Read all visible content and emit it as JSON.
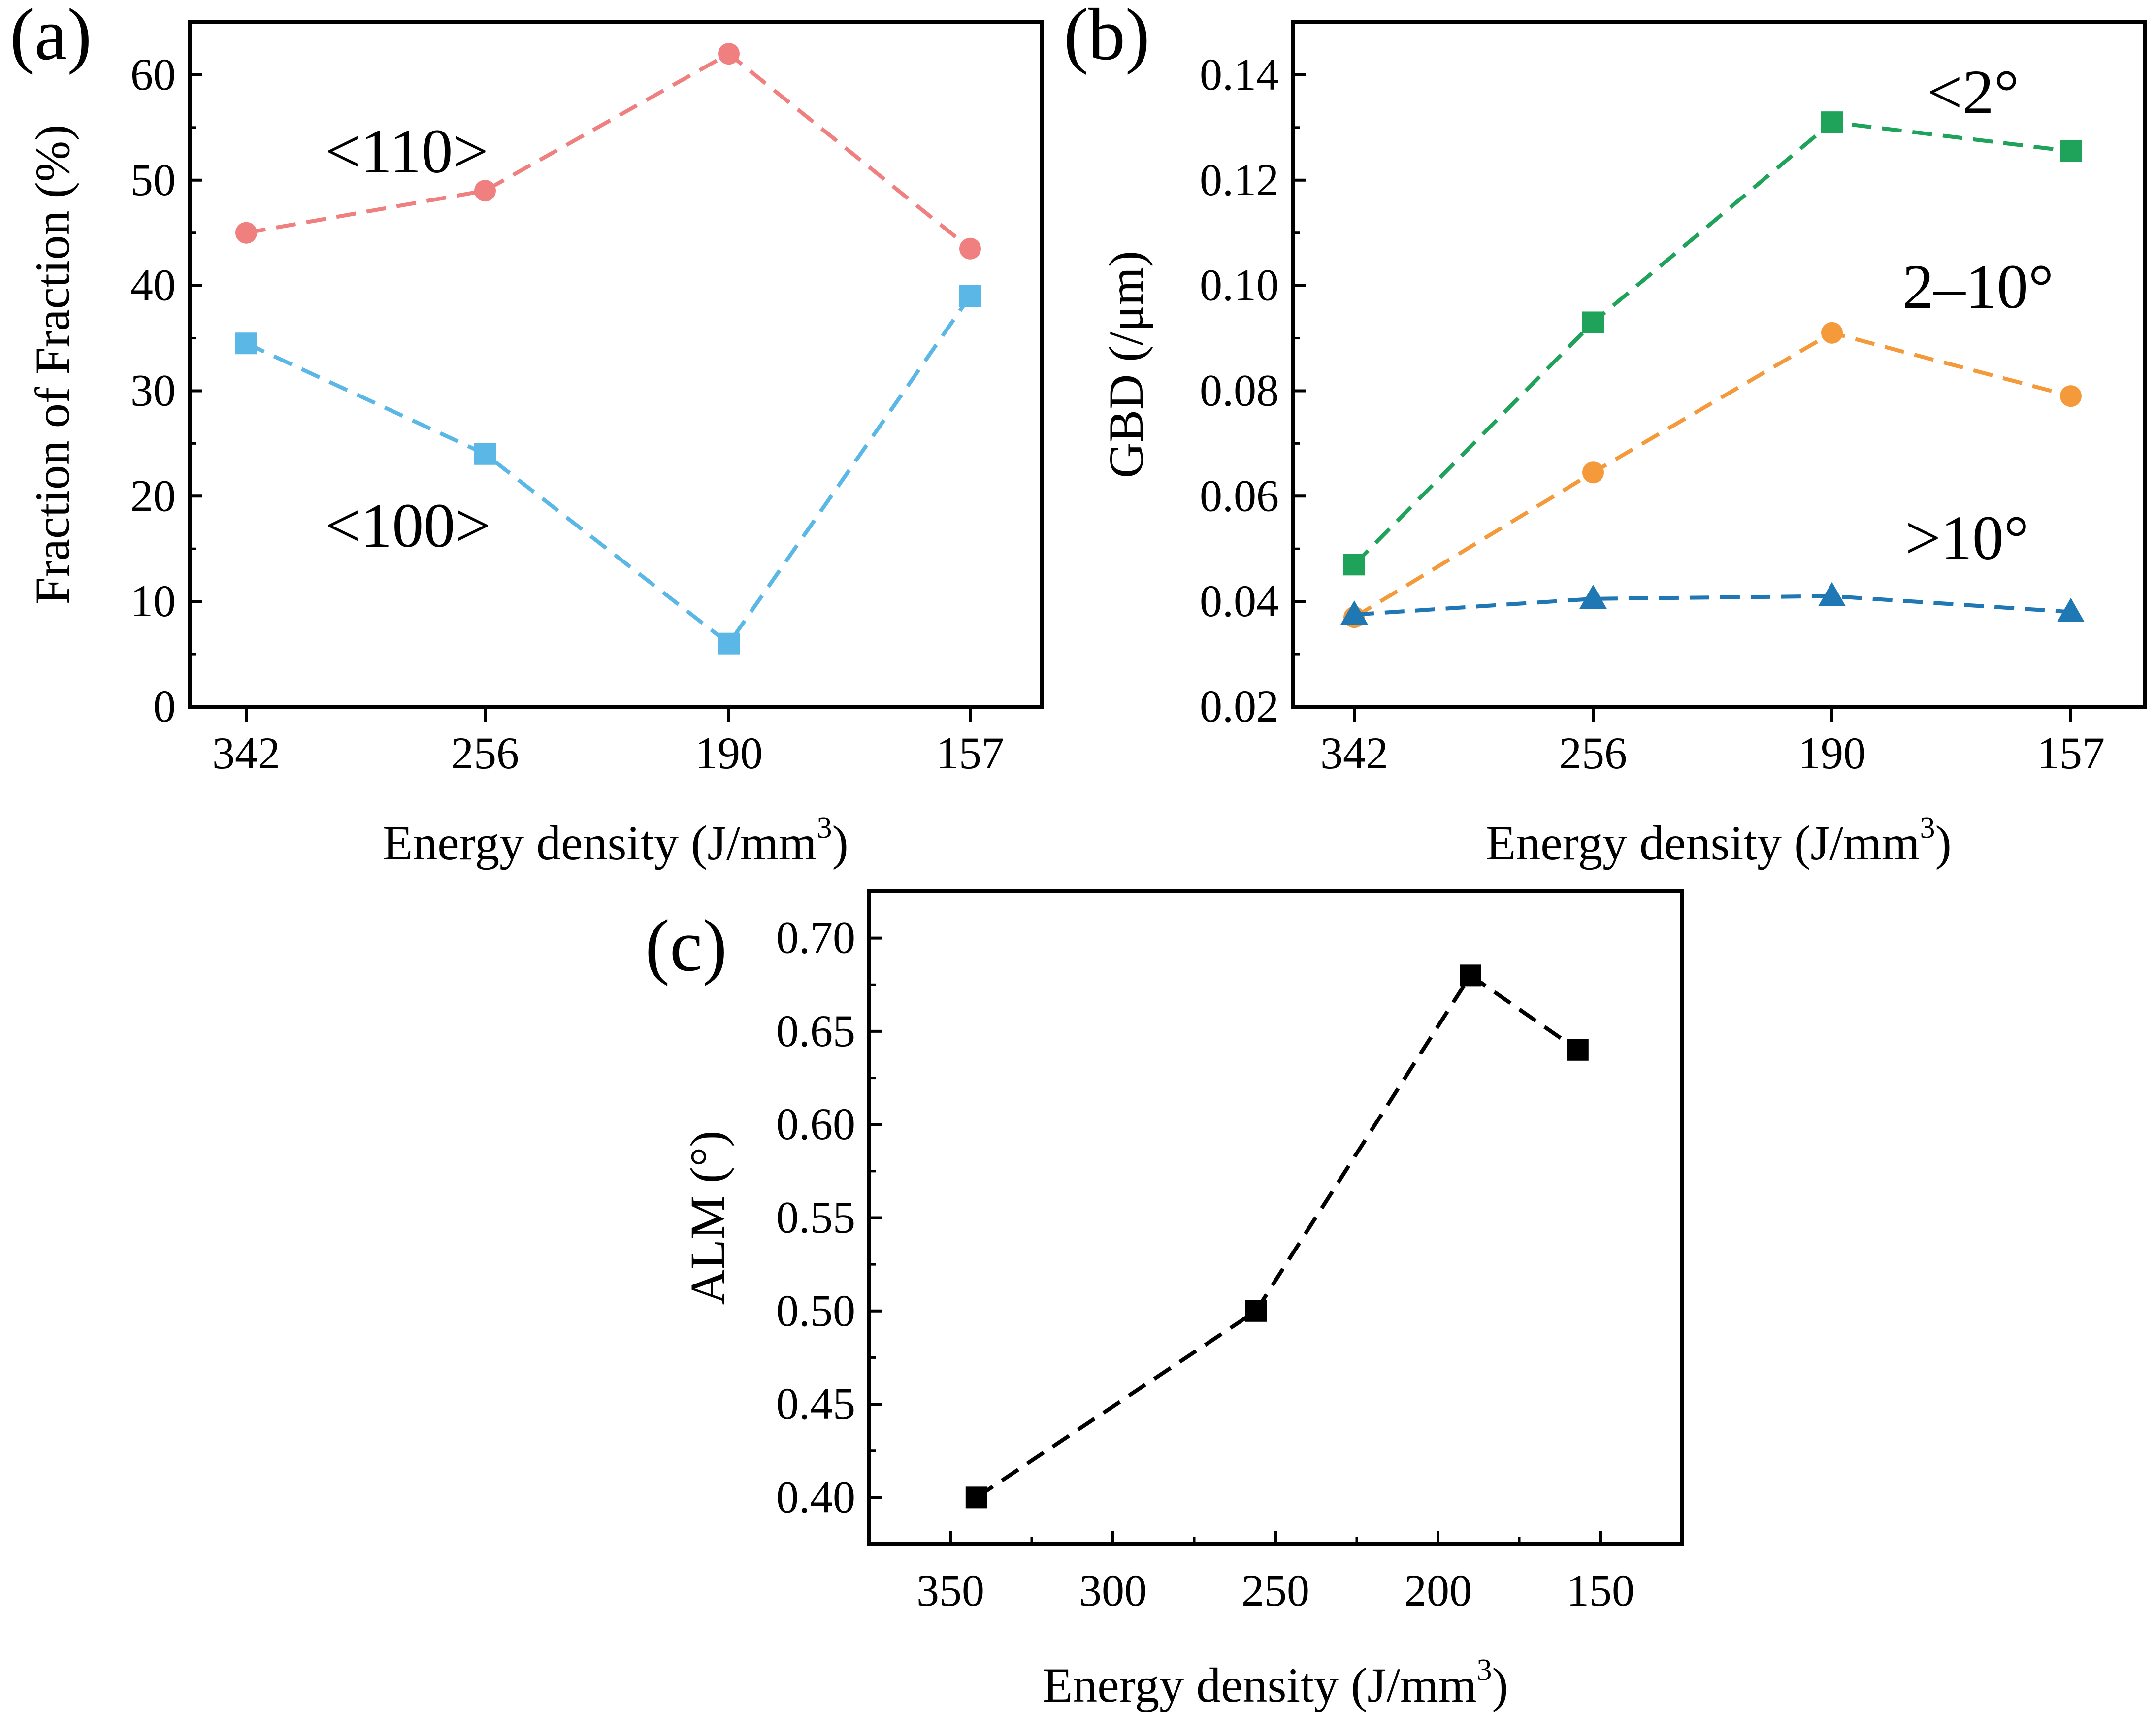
{
  "chart_data": [
    {
      "id": "a",
      "panel_label": "(a)",
      "type": "line",
      "xlabel": "Energy density (J/mm",
      "xlabel_sup": "3",
      "xlabel_tail": ")",
      "ylabel": "Fraction of Fraction (%)",
      "categories": [
        "342",
        "256",
        "190",
        "157"
      ],
      "ylim": [
        0,
        65
      ],
      "yticks": [
        0,
        10,
        20,
        30,
        40,
        50,
        60
      ],
      "series": [
        {
          "name": "<110>",
          "values": [
            45,
            49,
            62,
            43.5
          ],
          "color": "#F08080",
          "marker": "circle"
        },
        {
          "name": "<100>",
          "values": [
            34.5,
            24,
            6,
            39
          ],
          "color": "#5BB8E6",
          "marker": "square"
        }
      ]
    },
    {
      "id": "b",
      "panel_label": "(b)",
      "type": "line",
      "xlabel": "Energy density (J/mm",
      "xlabel_sup": "3",
      "xlabel_tail": ")",
      "ylabel": "GBD (/μm)",
      "categories": [
        "342",
        "256",
        "190",
        "157"
      ],
      "ylim": [
        0.02,
        0.15
      ],
      "yticks": [
        "0.02",
        "0.04",
        "0.06",
        "0.08",
        "0.10",
        "0.12",
        "0.14"
      ],
      "series": [
        {
          "name": "<2°",
          "values": [
            0.047,
            0.093,
            0.131,
            0.1255
          ],
          "color": "#1FA35A",
          "marker": "square"
        },
        {
          "name": "2–10°",
          "values": [
            0.037,
            0.0645,
            0.091,
            0.079
          ],
          "color": "#F59A3A",
          "marker": "circle"
        },
        {
          "name": ">10°",
          "values": [
            0.0375,
            0.0405,
            0.041,
            0.038
          ],
          "color": "#1F78B4",
          "marker": "triangle"
        }
      ]
    },
    {
      "id": "c",
      "panel_label": "(c)",
      "type": "line",
      "xlabel": "Energy density (J/mm",
      "xlabel_sup": "3",
      "xlabel_tail": ")",
      "ylabel": "ALM (°)",
      "xlim": [
        375,
        125
      ],
      "xticks": [
        350,
        300,
        250,
        200,
        150
      ],
      "ylim": [
        0.375,
        0.725
      ],
      "yticks": [
        "0.40",
        "0.45",
        "0.50",
        "0.55",
        "0.60",
        "0.65",
        "0.70"
      ],
      "series": [
        {
          "name": "ALM",
          "x": [
            342,
            256,
            190,
            157
          ],
          "values": [
            0.4,
            0.5,
            0.68,
            0.64
          ],
          "color": "#000000",
          "marker": "square"
        }
      ]
    }
  ]
}
